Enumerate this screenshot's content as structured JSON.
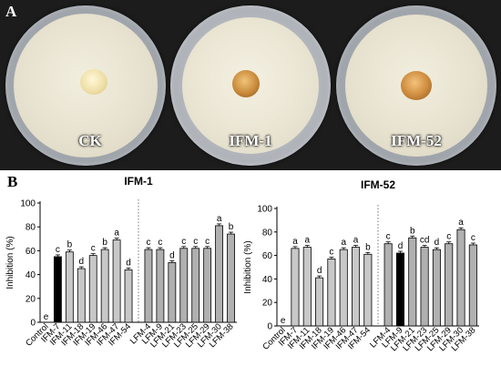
{
  "panel_a": {
    "letter": "A",
    "dishes": [
      {
        "label": "CK"
      },
      {
        "label": "IFM-1"
      },
      {
        "label": "IFM-52"
      }
    ]
  },
  "panel_b_letter": "B",
  "colors": {
    "control": "#000000",
    "ifm_bars": "#c8c8c8",
    "lfm_bars": "#b0b0b0",
    "bar_stroke": "#000000",
    "divider": "#777777"
  },
  "chart_data": [
    {
      "type": "bar",
      "title": "IFM-1",
      "ylabel": "Inhibition (%)",
      "ylim": [
        0,
        100
      ],
      "yticks": [
        0,
        20,
        40,
        60,
        80,
        100
      ],
      "categories": [
        "Control",
        "IFM-7",
        "IFM-11",
        "IFM-18",
        "IFM-19",
        "IFM-46",
        "IFM-47",
        "IFM-54",
        "LFM-4",
        "LFM-9",
        "LFM-21",
        "LFM-23",
        "LFM-25",
        "LFM-29",
        "LFM-30",
        "LFM-38"
      ],
      "values": [
        0,
        55,
        59,
        45,
        56,
        61,
        69,
        44,
        61,
        61,
        50,
        62,
        62,
        62,
        81,
        74
      ],
      "letters": [
        "e",
        "c",
        "b",
        "d",
        "c",
        "b",
        "a",
        "d",
        "c",
        "c",
        "d",
        "c",
        "c",
        "c",
        "a",
        "b"
      ],
      "groups": [
        {
          "name": "",
          "categories": [
            "Control",
            "IFM-7",
            "IFM-11",
            "IFM-18",
            "IFM-19",
            "IFM-46",
            "IFM-47",
            "IFM-54"
          ]
        },
        {
          "name": "",
          "categories": [
            "LFM-4",
            "LFM-9",
            "LFM-21",
            "LFM-23",
            "LFM-25",
            "LFM-29",
            "LFM-30",
            "LFM-38"
          ]
        }
      ],
      "highlight": "IFM-7"
    },
    {
      "type": "bar",
      "title": "IFM-52",
      "ylabel": "Inhibition (%)",
      "ylim": [
        0,
        100
      ],
      "yticks": [
        0,
        20,
        40,
        60,
        80,
        100
      ],
      "categories": [
        "Control",
        "IFM-7",
        "IFM-11",
        "IFM-18",
        "IFM-19",
        "IFM-46",
        "IFM-47",
        "IFM-54",
        "LFM-4",
        "LFM-9",
        "LFM-21",
        "LFM-23",
        "LFM-25",
        "LFM-29",
        "LFM-30",
        "LFM-38"
      ],
      "values": [
        0,
        66,
        67,
        41,
        57,
        65,
        67,
        61,
        70,
        62,
        75,
        67,
        65,
        70,
        82,
        69
      ],
      "letters": [
        "e",
        "a",
        "a",
        "d",
        "c",
        "a",
        "a",
        "b",
        "c",
        "d",
        "b",
        "cd",
        "d",
        "c",
        "a",
        "c"
      ],
      "groups": [
        {
          "name": "",
          "categories": [
            "Control",
            "IFM-7",
            "IFM-11",
            "IFM-18",
            "IFM-19",
            "IFM-46",
            "IFM-47",
            "IFM-54"
          ]
        },
        {
          "name": "",
          "categories": [
            "LFM-4",
            "LFM-9",
            "LFM-21",
            "LFM-23",
            "LFM-25",
            "LFM-29",
            "LFM-30",
            "LFM-38"
          ]
        }
      ],
      "highlight": "LFM-9"
    }
  ]
}
